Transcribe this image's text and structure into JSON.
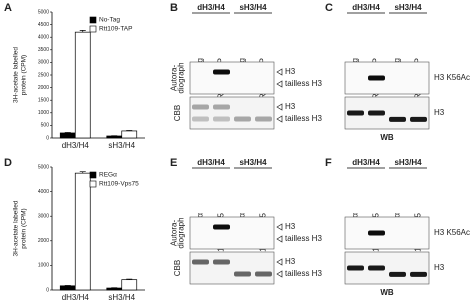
{
  "chart_data": [
    {
      "type": "bar",
      "letter": "A",
      "ylabel": [
        "3H-acetate labelled",
        "protein (CPM)"
      ],
      "categories": [
        "dH3/H4",
        "sH3/H4"
      ],
      "series": [
        {
          "name": "No-Tag",
          "color": "#000000",
          "values": [
            200,
            80
          ],
          "errors": [
            20,
            10
          ]
        },
        {
          "name": "Rtt109-TAP",
          "color": "#ffffff",
          "values": [
            4200,
            280
          ],
          "errors": [
            70,
            20
          ]
        }
      ],
      "ylim": [
        0,
        5000
      ],
      "yticks": [
        0,
        500,
        1000,
        1500,
        2000,
        2500,
        3000,
        3500,
        4000,
        4500,
        5000
      ]
    },
    {
      "type": "bar",
      "letter": "D",
      "ylabel": [
        "3H-acetate labelled",
        "protein (CPM)"
      ],
      "categories": [
        "dH3/H4",
        "sH3/H4"
      ],
      "series": [
        {
          "name": "REGα",
          "color": "#000000",
          "values": [
            170,
            80
          ],
          "errors": [
            15,
            10
          ]
        },
        {
          "name": "Rtt109-Vps75",
          "color": "#ffffff",
          "values": [
            4750,
            420
          ],
          "errors": [
            60,
            25
          ]
        }
      ],
      "ylim": [
        0,
        5000
      ],
      "yticks": [
        0,
        1000,
        2000,
        3000,
        4000,
        5000
      ]
    }
  ],
  "gels": [
    {
      "letter": "B",
      "groups": [
        "dH3/H4",
        "sH3/H4"
      ],
      "lanes": [
        "No-Tag",
        "Rtt109-TAP",
        "No-Tag",
        "Rtt109-TAP"
      ],
      "rows": [
        {
          "side": [
            "Autora-",
            "diograph"
          ],
          "labels": [
            "H3",
            "tailless H3"
          ]
        },
        {
          "side": [
            "CBB"
          ],
          "labels": [
            "H3",
            "tailless H3"
          ]
        }
      ]
    },
    {
      "letter": "C",
      "groups": [
        "dH3/H4",
        "sH3/H4"
      ],
      "lanes": [
        "No-Tag",
        "Rtt109-TAP",
        "No-Tag",
        "Rtt109-TAP"
      ],
      "rows": [
        {
          "labels": [
            "H3 K56Ac"
          ]
        },
        {
          "labels": [
            "H3"
          ]
        }
      ],
      "footer": "WB"
    },
    {
      "letter": "E",
      "groups": [
        "dH3/H4",
        "sH3/H4"
      ],
      "lanes": [
        "REGα",
        "Rtt109-Vps75",
        "REGα",
        "Rtt109-Vps75"
      ],
      "rows": [
        {
          "side": [
            "Autora-",
            "diograph"
          ],
          "labels": [
            "H3",
            "tailless H3"
          ]
        },
        {
          "side": [
            "CBB"
          ],
          "labels": [
            "H3",
            "tailless H3"
          ]
        }
      ]
    },
    {
      "letter": "F",
      "groups": [
        "dH3/H4",
        "sH3/H4"
      ],
      "lanes": [
        "REGα",
        "Rtt109-Vps75",
        "REGα",
        "Rtt109-Vps75"
      ],
      "rows": [
        {
          "labels": [
            "H3 K56Ac"
          ]
        },
        {
          "labels": [
            "H3"
          ]
        }
      ],
      "footer": "WB"
    }
  ]
}
